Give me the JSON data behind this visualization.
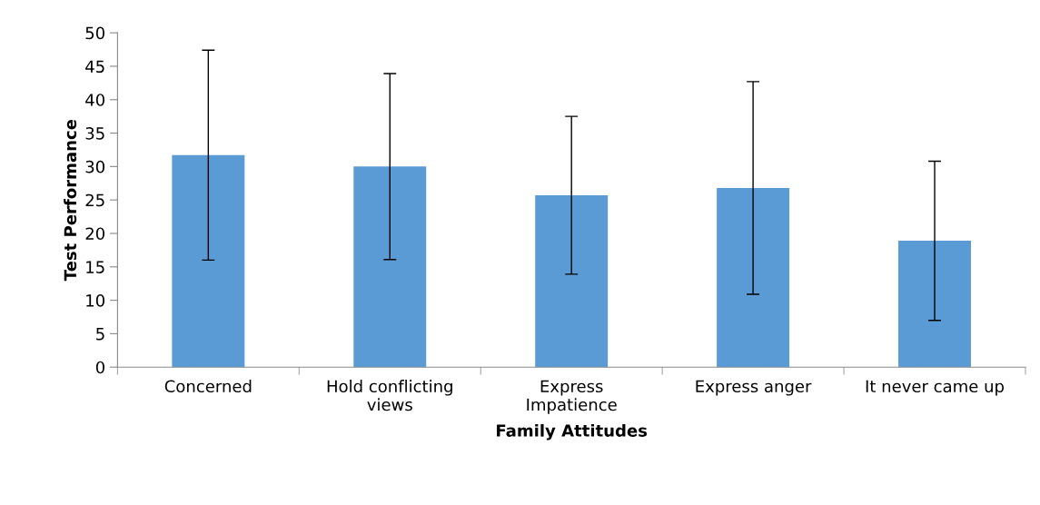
{
  "chart_data": {
    "type": "bar",
    "xlabel": "Family Attitudes",
    "ylabel": "Test Performance",
    "categories": [
      "Concerned",
      "Hold conflicting\nviews",
      "Express\nImpatience",
      "Express anger",
      "It never came up"
    ],
    "values": [
      31.7,
      30.0,
      25.7,
      26.8,
      18.9
    ],
    "errors": [
      15.7,
      13.9,
      11.8,
      15.9,
      11.9
    ],
    "color": "#5b9bd5",
    "ylim": [
      0,
      50
    ],
    "yticks": [
      0,
      5,
      10,
      15,
      20,
      25,
      30,
      35,
      40,
      45,
      50
    ],
    "grid": false,
    "legend": false
  }
}
